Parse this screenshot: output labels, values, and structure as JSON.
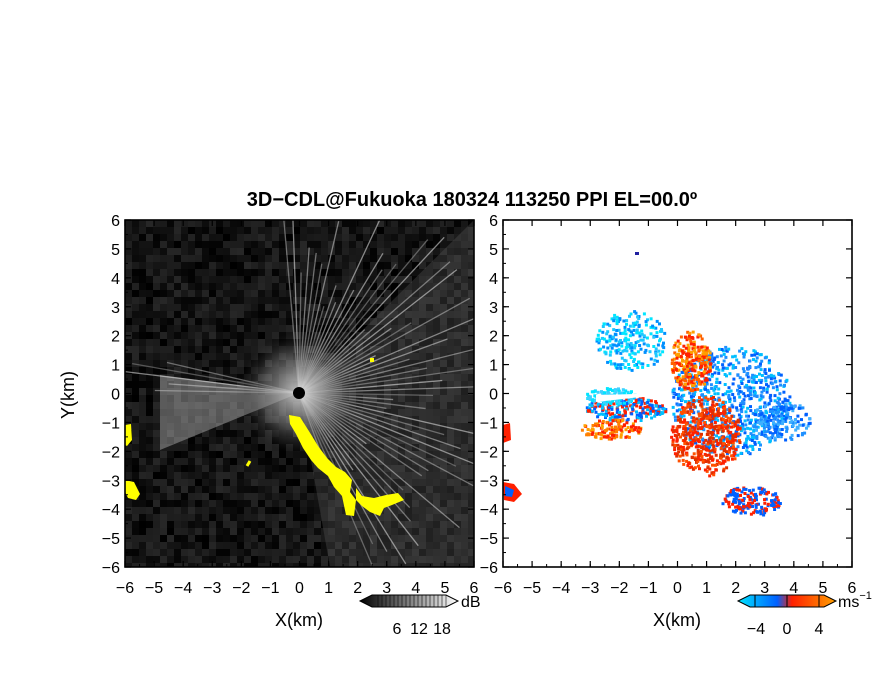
{
  "chart_data": [
    {
      "type": "heatmap",
      "title": "3D−CDL@Fukuoka 180324 113250 PPI EL=00.0º",
      "xlabel": "X(km)",
      "ylabel": "Y(km)",
      "xlim": [
        -6,
        6
      ],
      "ylim": [
        -6,
        6
      ],
      "x_ticks": [
        "−6",
        "−5",
        "−4",
        "−3",
        "−2",
        "−1",
        "0",
        "1",
        "2",
        "3",
        "4",
        "5",
        "6"
      ],
      "y_ticks": [
        "6",
        "5",
        "4",
        "3",
        "2",
        "1",
        "0",
        "−1",
        "−2",
        "−3",
        "−4",
        "−5",
        "−6"
      ],
      "variable": "SNR",
      "colorbar": {
        "unit": "dB",
        "ticks": [
          "6",
          "12",
          "18"
        ],
        "colors": [
          "#000000",
          "#ffffff"
        ],
        "mask_color": "#ffff00"
      }
    },
    {
      "type": "heatmap",
      "xlabel": "X(km)",
      "xlim": [
        -6,
        6
      ],
      "ylim": [
        -6,
        6
      ],
      "x_ticks": [
        "−6",
        "−5",
        "−4",
        "−3",
        "−2",
        "−1",
        "0",
        "1",
        "2",
        "3",
        "4",
        "5",
        "6"
      ],
      "y_ticks": [
        "6",
        "5",
        "4",
        "3",
        "2",
        "1",
        "0",
        "−1",
        "−2",
        "−3",
        "−4",
        "−5",
        "−6"
      ],
      "variable": "Doppler velocity",
      "colorbar": {
        "unit": "ms",
        "unit_sup": "−1",
        "ticks": [
          "−4",
          "0",
          "4"
        ],
        "colors": [
          "#00e5ff",
          "#0060ff",
          "#ff2000",
          "#ffa000"
        ]
      }
    }
  ]
}
